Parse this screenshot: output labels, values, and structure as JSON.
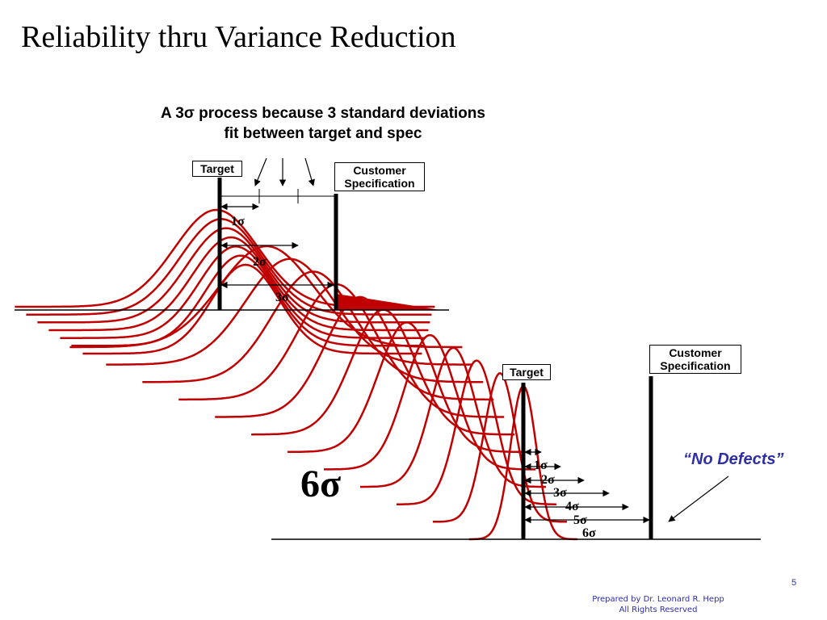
{
  "title": "Reliability thru Variance Reduction",
  "headline": {
    "line1": "A 3σ process because 3 standard deviations",
    "line2": "fit between target and spec"
  },
  "diagram_top": {
    "target_label": "Target",
    "spec_label_line1": "Customer",
    "spec_label_line2": "Specification",
    "sigma_labels": [
      "1σ",
      "2σ",
      "3σ"
    ]
  },
  "diagram_bottom": {
    "target_label": "Target",
    "spec_label_line1": "Customer",
    "spec_label_line2": "Specification",
    "sigma_labels": [
      "1σ",
      "2σ",
      "3σ",
      "4σ",
      "5σ",
      "6σ"
    ],
    "big_label": "6σ",
    "callout": "“No Defects”"
  },
  "colors": {
    "curve": "#c00000",
    "text": "#000000",
    "footer": "#2e2ea8"
  },
  "page_number": "5",
  "footer": {
    "line1": "Prepared by Dr. Leonard R. Hepp",
    "line2": "All Rights Reserved"
  }
}
